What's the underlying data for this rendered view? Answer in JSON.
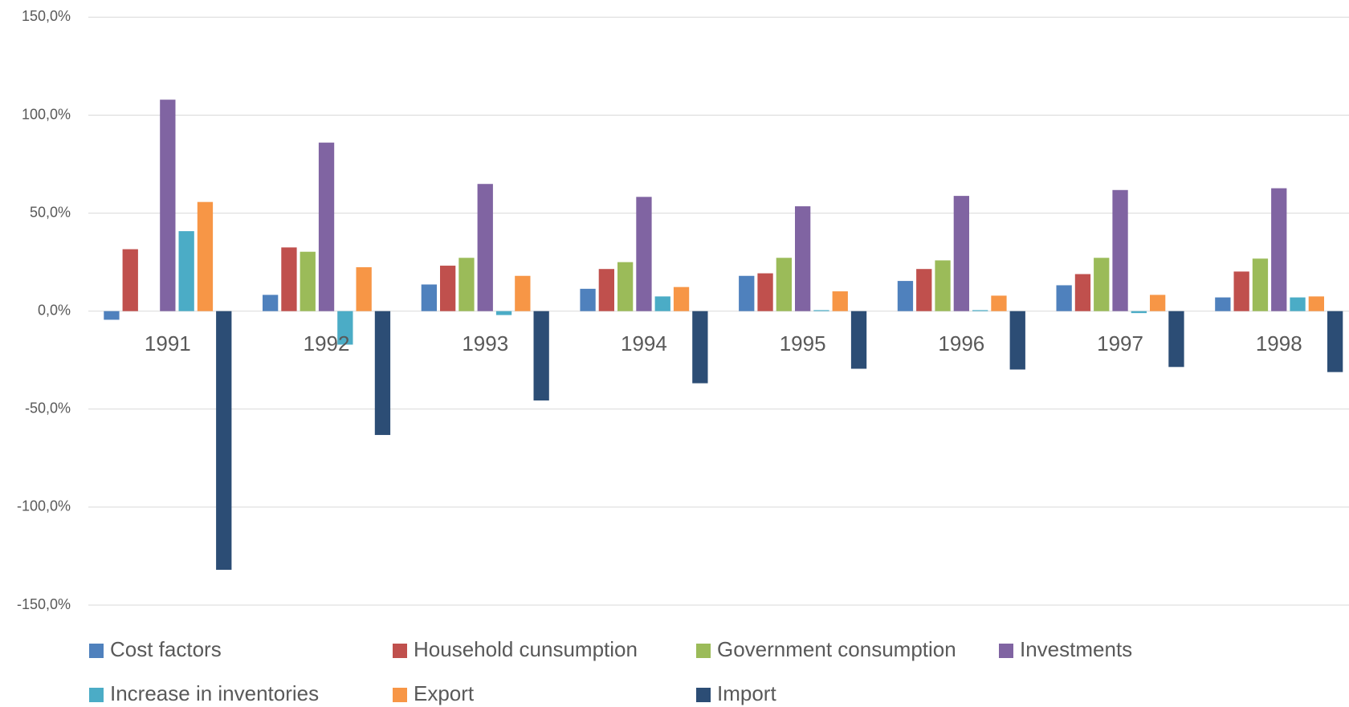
{
  "chart_data": {
    "type": "bar",
    "categories": [
      "1991",
      "1992",
      "1993",
      "1994",
      "1995",
      "1996",
      "1997",
      "1998"
    ],
    "series": [
      {
        "name": "Cost factors",
        "color": "#4f81bd",
        "values": [
          -4.4,
          8.3,
          13.6,
          11.4,
          18,
          15.4,
          13.2,
          7
        ]
      },
      {
        "name": "Household cunsumption",
        "color": "#c0504d",
        "values": [
          31.6,
          32.5,
          23.2,
          21.5,
          19.3,
          21.5,
          18.9,
          20.2
        ]
      },
      {
        "name": "Government consumption",
        "color": "#9bbb59",
        "values": [
          null,
          30.3,
          27.2,
          25,
          27.2,
          25.9,
          27.2,
          26.8
        ]
      },
      {
        "name": "Investments",
        "color": "#8064a2",
        "values": [
          107.9,
          86,
          64.9,
          58.3,
          53.5,
          58.8,
          61.8,
          62.7
        ]
      },
      {
        "name": "Increase in inventories",
        "color": "#4bacc6",
        "values": [
          40.8,
          -17.1,
          -2,
          7.5,
          0.5,
          0.5,
          -1,
          7
        ]
      },
      {
        "name": "Export",
        "color": "#f79646",
        "values": [
          55.7,
          22.4,
          18,
          12.3,
          10.1,
          7.9,
          8.3,
          7.5
        ]
      },
      {
        "name": "Import",
        "color": "#2c4d75",
        "values": [
          -132,
          -63.2,
          -45.6,
          -36.8,
          -29.4,
          -29.8,
          -28.5,
          -31.1
        ]
      }
    ],
    "ylim": [
      -150,
      150
    ],
    "yticks": [
      {
        "value": -150,
        "label": "-150,0%"
      },
      {
        "value": -100,
        "label": "-100,0%"
      },
      {
        "value": -50,
        "label": "-50,0%"
      },
      {
        "value": 0,
        "label": "0,0%"
      },
      {
        "value": 50,
        "label": "50,0%"
      },
      {
        "value": 100,
        "label": "100,0%"
      },
      {
        "value": 150,
        "label": "150,0%"
      }
    ],
    "grid": true
  }
}
